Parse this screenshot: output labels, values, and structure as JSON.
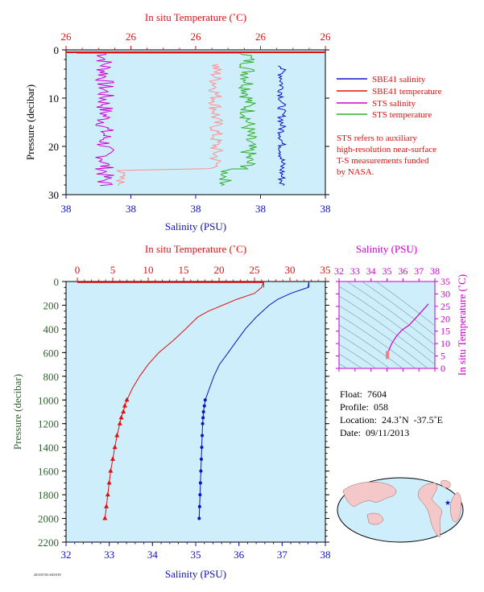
{
  "colors": {
    "salinity": "#1010c8",
    "temperature": "#e01010",
    "sts_salinity": "#d000d0",
    "sts_temperature": "#30b030",
    "sts_temp_light": "#ff9090",
    "plot_bg": "#cdeefa",
    "ts_axis": "#cc00cc",
    "pressure_axis": "#306030",
    "map_land": "#f4c8c8",
    "map_ocean": "#cdeefa"
  },
  "top_chart": {
    "title_temperature": "In situ Temperature (˚C)",
    "xlabel_salinity": "Salinity (PSU)",
    "ylabel": "Pressure (decibar)",
    "temp_ticks": [
      "26",
      "26",
      "26",
      "26",
      "26"
    ],
    "sal_ticks": [
      "38",
      "38",
      "38",
      "38",
      "38"
    ],
    "pressure_ticks": [
      "0",
      "10",
      "20",
      "30"
    ],
    "legend": {
      "sbe_salinity": "SBE41 salinity",
      "sbe_temperature": "SBE41 temperature",
      "sts_salinity": "STS salinity",
      "sts_temperature": "STS temperature"
    },
    "note": [
      "STS refers to auxiliary",
      "high-resolution near-surface",
      "T-S measurements funded",
      "by NASA."
    ]
  },
  "bottom_chart": {
    "title_temperature": "In situ Temperature (˚C)",
    "xlabel_salinity": "Salinity (PSU)",
    "ylabel": "Pressure (decibar)",
    "temp_ticks": [
      "0",
      "5",
      "10",
      "15",
      "20",
      "25",
      "30",
      "35"
    ],
    "sal_ticks": [
      "32",
      "33",
      "34",
      "35",
      "36",
      "37",
      "38"
    ],
    "pressure_ticks": [
      "0",
      "200",
      "400",
      "600",
      "800",
      "1000",
      "1200",
      "1400",
      "1600",
      "1800",
      "2000",
      "2200"
    ],
    "footer": "2013/07/03 SIO/STS"
  },
  "ts_chart": {
    "title": "Salinity (PSU)",
    "ylabel": "In situ Temperature (˚C)",
    "sal_ticks": [
      "32",
      "33",
      "34",
      "35",
      "36",
      "37",
      "38"
    ],
    "temp_ticks": [
      "0",
      "5",
      "10",
      "15",
      "20",
      "25",
      "30",
      "35"
    ]
  },
  "float_info": {
    "float": "Float:  7604",
    "profile": "Profile:  058",
    "location": "Location:  24.3˚N  -37.5˚E",
    "date": "Date:  09/11/2013"
  },
  "chart_data": [
    {
      "type": "line",
      "title": "In situ Temperature (˚C)",
      "xlabel": "Salinity (PSU)",
      "ylabel": "Pressure (decibar)",
      "ylim": [
        30,
        0
      ],
      "series": [
        {
          "name": "SBE41 salinity",
          "pressure": [
            4,
            8,
            12,
            16,
            20,
            24,
            26,
            28
          ],
          "salinity": [
            37.62,
            37.61,
            37.6,
            37.6,
            37.61,
            37.61,
            37.6,
            37.6
          ]
        },
        {
          "name": "SBE41 temperature",
          "pressure": [
            0.8,
            0.8
          ],
          "temperature": [
            26,
            26
          ]
        },
        {
          "name": "STS salinity",
          "pressure": [
            1,
            4,
            8,
            12,
            16,
            20,
            24,
            26,
            28
          ]
        },
        {
          "name": "STS temperature",
          "pressure": [
            1,
            4,
            8,
            12,
            16,
            20,
            24,
            26,
            28
          ]
        }
      ]
    },
    {
      "type": "line",
      "title": "In situ Temperature (˚C)",
      "xlabel": "Salinity (PSU)",
      "ylabel": "Pressure (decibar)",
      "ylim": [
        2200,
        0
      ],
      "series": [
        {
          "name": "temperature",
          "pressure": [
            0,
            50,
            100,
            150,
            200,
            250,
            300,
            400,
            500,
            600,
            700,
            800,
            900,
            1000,
            1050,
            1100,
            1150,
            1200,
            1300,
            1400,
            1500,
            1600,
            1700,
            1800,
            1900,
            2000
          ],
          "temperature": [
            26.3,
            26.0,
            25.0,
            22.5,
            20.5,
            18.5,
            17.0,
            15.3,
            13.5,
            11.5,
            10.0,
            8.8,
            7.8,
            7.0,
            6.7,
            6.5,
            6.2,
            6.0,
            5.6,
            5.3,
            5.0,
            4.7,
            4.5,
            4.3,
            4.1,
            3.9
          ],
          "markers_from": 1000
        },
        {
          "name": "salinity",
          "pressure": [
            0,
            50,
            100,
            150,
            200,
            250,
            300,
            400,
            500,
            600,
            700,
            800,
            900,
            1000,
            1050,
            1100,
            1150,
            1200,
            1300,
            1400,
            1500,
            1600,
            1700,
            1800,
            1900,
            2000
          ],
          "salinity": [
            37.62,
            37.6,
            37.2,
            36.9,
            36.7,
            36.55,
            36.4,
            36.15,
            35.95,
            35.75,
            35.55,
            35.42,
            35.32,
            35.22,
            35.2,
            35.18,
            35.17,
            35.16,
            35.15,
            35.14,
            35.13,
            35.12,
            35.11,
            35.1,
            35.09,
            35.08
          ],
          "markers_from": 1000
        }
      ]
    },
    {
      "type": "line",
      "title": "Salinity (PSU)",
      "ylabel": "In situ Temperature (˚C)",
      "xlim": [
        32,
        38
      ],
      "ylim": [
        0,
        35
      ],
      "series": [
        {
          "name": "T-S",
          "salinity": [
            35.0,
            35.1,
            35.3,
            35.6,
            35.95,
            36.4,
            36.9,
            37.6
          ],
          "temperature": [
            4,
            7,
            10,
            13,
            15.5,
            17.5,
            21,
            26
          ]
        }
      ]
    }
  ]
}
